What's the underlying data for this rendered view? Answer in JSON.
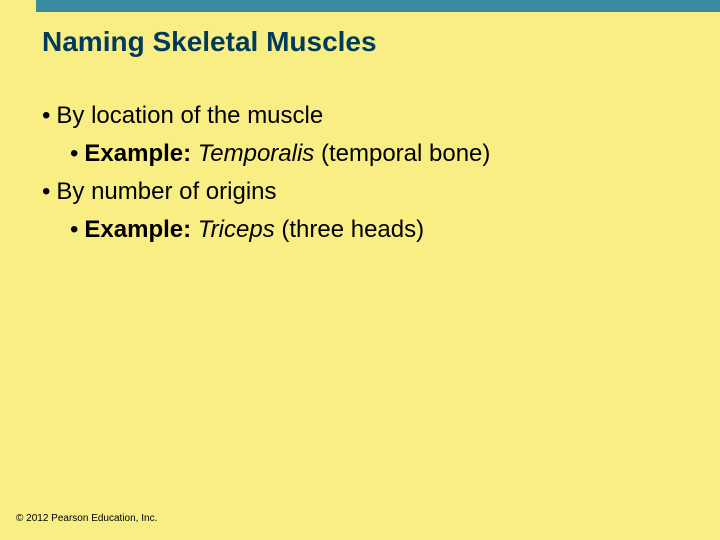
{
  "slide": {
    "title": "Naming Skeletal Muscles",
    "title_color": "#003a5d",
    "title_fontsize": 28,
    "background_color": "#f9ee83",
    "top_bar_color": "#3a8ba0",
    "bullets": [
      {
        "level": 1,
        "parts": [
          {
            "text": "By location of the muscle",
            "bold": false,
            "italic": false
          }
        ]
      },
      {
        "level": 2,
        "parts": [
          {
            "text": "Example: ",
            "bold": true,
            "italic": false
          },
          {
            "text": "Temporalis",
            "bold": false,
            "italic": true
          },
          {
            "text": " (temporal bone)",
            "bold": false,
            "italic": false
          }
        ]
      },
      {
        "level": 1,
        "parts": [
          {
            "text": "By number of origins",
            "bold": false,
            "italic": false
          }
        ]
      },
      {
        "level": 2,
        "parts": [
          {
            "text": "Example: ",
            "bold": true,
            "italic": false
          },
          {
            "text": "Triceps",
            "bold": false,
            "italic": true
          },
          {
            "text": " (three heads)",
            "bold": false,
            "italic": false
          }
        ]
      }
    ],
    "body_fontsize": 24,
    "body_color": "#000000",
    "copyright": "© 2012 Pearson Education, Inc.",
    "copyright_fontsize": 10
  }
}
